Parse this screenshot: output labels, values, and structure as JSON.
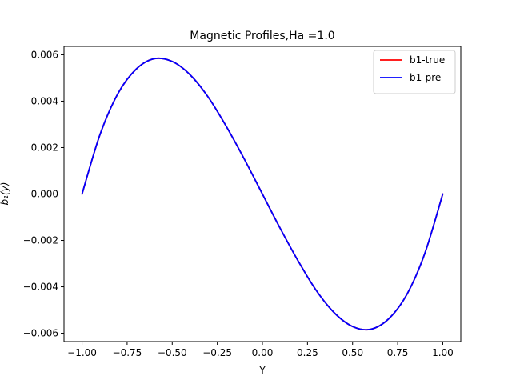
{
  "chart_data": {
    "type": "line",
    "title": "Magnetic Profiles,Ha =1.0",
    "xlabel": "Y",
    "ylabel": "b₁(y)",
    "xlim": [
      -1.1,
      1.1
    ],
    "ylim": [
      -0.00636,
      0.00636
    ],
    "x_ticks": [
      -1.0,
      -0.75,
      -0.5,
      -0.25,
      0.0,
      0.25,
      0.5,
      0.75,
      1.0
    ],
    "x_tick_labels": [
      "−1.00",
      "−0.75",
      "−0.50",
      "−0.25",
      "0.00",
      "0.25",
      "0.50",
      "0.75",
      "1.00"
    ],
    "y_ticks": [
      -0.006,
      -0.004,
      -0.002,
      0.0,
      0.002,
      0.004,
      0.006
    ],
    "y_tick_labels": [
      "−0.006",
      "−0.004",
      "−0.002",
      "0.000",
      "0.002",
      "0.004",
      "0.006"
    ],
    "legend_position": "top-right",
    "grid": false,
    "series": [
      {
        "name": "b1-true",
        "color": "#ff0000",
        "x": [
          -1.0,
          -0.9,
          -0.8,
          -0.7,
          -0.6,
          -0.5,
          -0.4,
          -0.3,
          -0.2,
          -0.1,
          0.0,
          0.1,
          0.2,
          0.3,
          0.4,
          0.5,
          0.6,
          0.7,
          0.8,
          0.9,
          1.0
        ],
        "y": [
          0.0,
          0.00257,
          0.00434,
          0.00538,
          0.00583,
          0.00571,
          0.00513,
          0.00417,
          0.00291,
          0.0015,
          0.0,
          -0.0015,
          -0.00291,
          -0.00417,
          -0.00513,
          -0.00571,
          -0.00583,
          -0.00538,
          -0.00434,
          -0.00257,
          0.0
        ]
      },
      {
        "name": "b1-pre",
        "color": "#0000ff",
        "x": [
          -1.0,
          -0.9,
          -0.8,
          -0.7,
          -0.6,
          -0.5,
          -0.4,
          -0.3,
          -0.2,
          -0.1,
          0.0,
          0.1,
          0.2,
          0.3,
          0.4,
          0.5,
          0.6,
          0.7,
          0.8,
          0.9,
          1.0
        ],
        "y": [
          0.0,
          0.00257,
          0.00434,
          0.00538,
          0.00583,
          0.00571,
          0.00513,
          0.00417,
          0.00291,
          0.0015,
          0.0,
          -0.0015,
          -0.00291,
          -0.00417,
          -0.00513,
          -0.00571,
          -0.00583,
          -0.00538,
          -0.00434,
          -0.00257,
          0.0
        ]
      }
    ]
  }
}
